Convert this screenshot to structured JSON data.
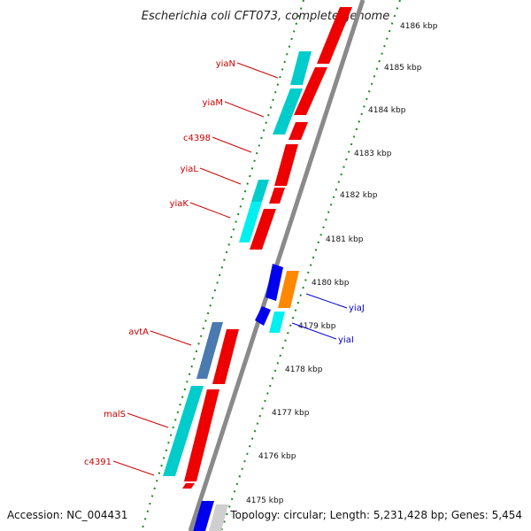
{
  "map": {
    "title": "Escherichia coli CFT073, complete genome",
    "accession": "Accession: NC_004431",
    "topology": "Topology: circular; Length: 5,231,428 bp; Genes: 5,454"
  },
  "colors": {
    "backbone": "#8a8a8a",
    "tick_dots": "#1a8a1a",
    "forward_cds": "#00cccc",
    "forward_cds_alt": "#4a7ab0",
    "reverse_cds": "#ee0000",
    "label_forward": "#cc0000",
    "label_reverse": "#0000cc",
    "gene_blue": "#0000ee",
    "gene_orange": "#ff8800",
    "gene_grey": "#cfcfcf"
  },
  "kbp_ticks": [
    {
      "label": "4186 kbp",
      "kbp": 4186
    },
    {
      "label": "4185 kbp",
      "kbp": 4185
    },
    {
      "label": "4184 kbp",
      "kbp": 4184
    },
    {
      "label": "4183 kbp",
      "kbp": 4183
    },
    {
      "label": "4182 kbp",
      "kbp": 4182
    },
    {
      "label": "4181 kbp",
      "kbp": 4181
    },
    {
      "label": "4180 kbp",
      "kbp": 4180
    },
    {
      "label": "4179 kbp",
      "kbp": 4179
    },
    {
      "label": "4178 kbp",
      "kbp": 4178
    },
    {
      "label": "4177 kbp",
      "kbp": 4177
    },
    {
      "label": "4176 kbp",
      "kbp": 4176
    },
    {
      "label": "4175 kbp",
      "kbp": 4175
    }
  ],
  "gene_labels": [
    {
      "name": "yiaN",
      "strand": "forward"
    },
    {
      "name": "yiaM",
      "strand": "forward"
    },
    {
      "name": "c4398",
      "strand": "forward"
    },
    {
      "name": "yiaL",
      "strand": "forward"
    },
    {
      "name": "yiaK",
      "strand": "forward"
    },
    {
      "name": "avtA",
      "strand": "forward"
    },
    {
      "name": "malS",
      "strand": "forward"
    },
    {
      "name": "c4391",
      "strand": "forward"
    },
    {
      "name": "yiaJ",
      "strand": "reverse"
    },
    {
      "name": "yiaI",
      "strand": "reverse"
    }
  ]
}
